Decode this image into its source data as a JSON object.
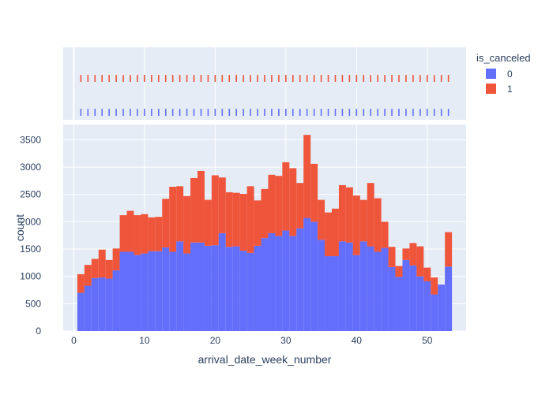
{
  "chart_data": {
    "type": "bar",
    "stacked": true,
    "xlabel": "arrival_date_week_number",
    "ylabel": "count",
    "xlim": [
      -1.5,
      55.5
    ],
    "ylim": [
      0,
      3780
    ],
    "x_ticks": [
      0,
      10,
      20,
      30,
      40,
      50
    ],
    "y_ticks": [
      0,
      500,
      1000,
      1500,
      2000,
      2500,
      3000,
      3500
    ],
    "grid": true,
    "legend": {
      "title": "is_canceled",
      "position": "top-right"
    },
    "categories": [
      1,
      2,
      3,
      4,
      5,
      6,
      7,
      8,
      9,
      10,
      11,
      12,
      13,
      14,
      15,
      16,
      17,
      18,
      19,
      20,
      21,
      22,
      23,
      24,
      25,
      26,
      27,
      28,
      29,
      30,
      31,
      32,
      33,
      34,
      35,
      36,
      37,
      38,
      39,
      40,
      41,
      42,
      43,
      44,
      45,
      46,
      47,
      48,
      49,
      50,
      51,
      52,
      53
    ],
    "series": [
      {
        "name": "0",
        "color": "#636efa",
        "values": [
          700,
          830,
          970,
          980,
          960,
          1110,
          1450,
          1450,
          1390,
          1420,
          1460,
          1460,
          1530,
          1450,
          1640,
          1420,
          1620,
          1620,
          1560,
          1570,
          1790,
          1540,
          1550,
          1470,
          1430,
          1560,
          1700,
          1790,
          1740,
          1840,
          1740,
          1880,
          2070,
          2000,
          1670,
          1370,
          1370,
          1640,
          1620,
          1390,
          1640,
          1550,
          1450,
          1520,
          1170,
          990,
          1300,
          1200,
          1000,
          910,
          670,
          850,
          1180
        ]
      },
      {
        "name": "1",
        "color": "#ef553b",
        "values": [
          340,
          380,
          350,
          510,
          340,
          400,
          670,
          750,
          730,
          720,
          620,
          630,
          890,
          1190,
          1010,
          1050,
          1180,
          1310,
          840,
          1280,
          1020,
          1000,
          980,
          1040,
          1220,
          830,
          900,
          1070,
          1100,
          1250,
          1240,
          830,
          1520,
          1060,
          730,
          800,
          870,
          1030,
          1010,
          1090,
          760,
          1160,
          980,
          480,
          370,
          200,
          210,
          410,
          550,
          250,
          310,
          0,
          630
        ]
      }
    ]
  },
  "legend_items": [
    {
      "label": "0",
      "color": "#636efa"
    },
    {
      "label": "1",
      "color": "#ef553b"
    }
  ]
}
